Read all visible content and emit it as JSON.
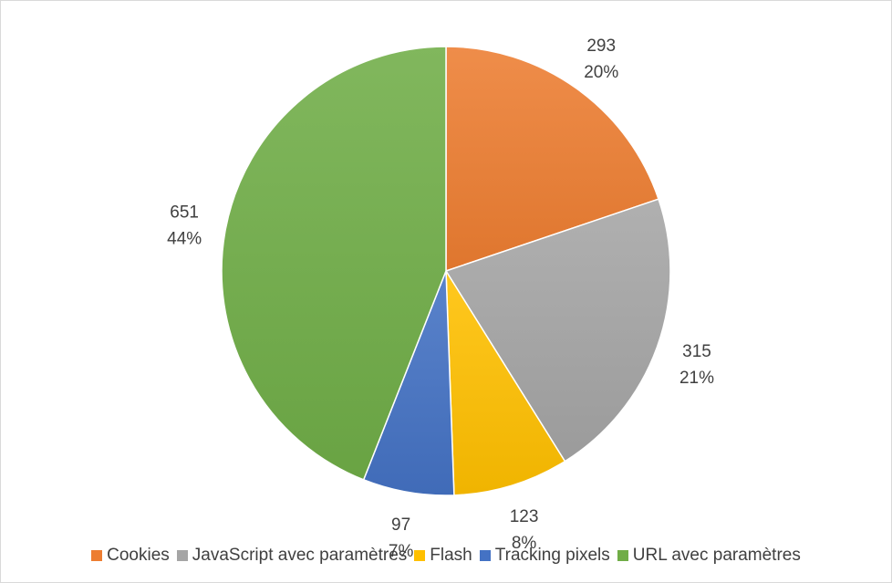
{
  "chart_data": {
    "type": "pie",
    "title": "",
    "categories": [
      "Cookies",
      "JavaScript avec paramètres",
      "Flash",
      "Tracking pixels",
      "URL avec paramètres"
    ],
    "values": [
      293,
      315,
      123,
      97,
      651
    ],
    "percent_labels": [
      "20%",
      "21%",
      "8%",
      "7%",
      "44%"
    ],
    "colors": [
      "#ED7D31",
      "#A5A5A5",
      "#FFC000",
      "#4472C4",
      "#70AD47"
    ],
    "start_angle_deg": 0,
    "direction": "clockwise",
    "data_labels": "outside",
    "legend_position": "bottom"
  }
}
